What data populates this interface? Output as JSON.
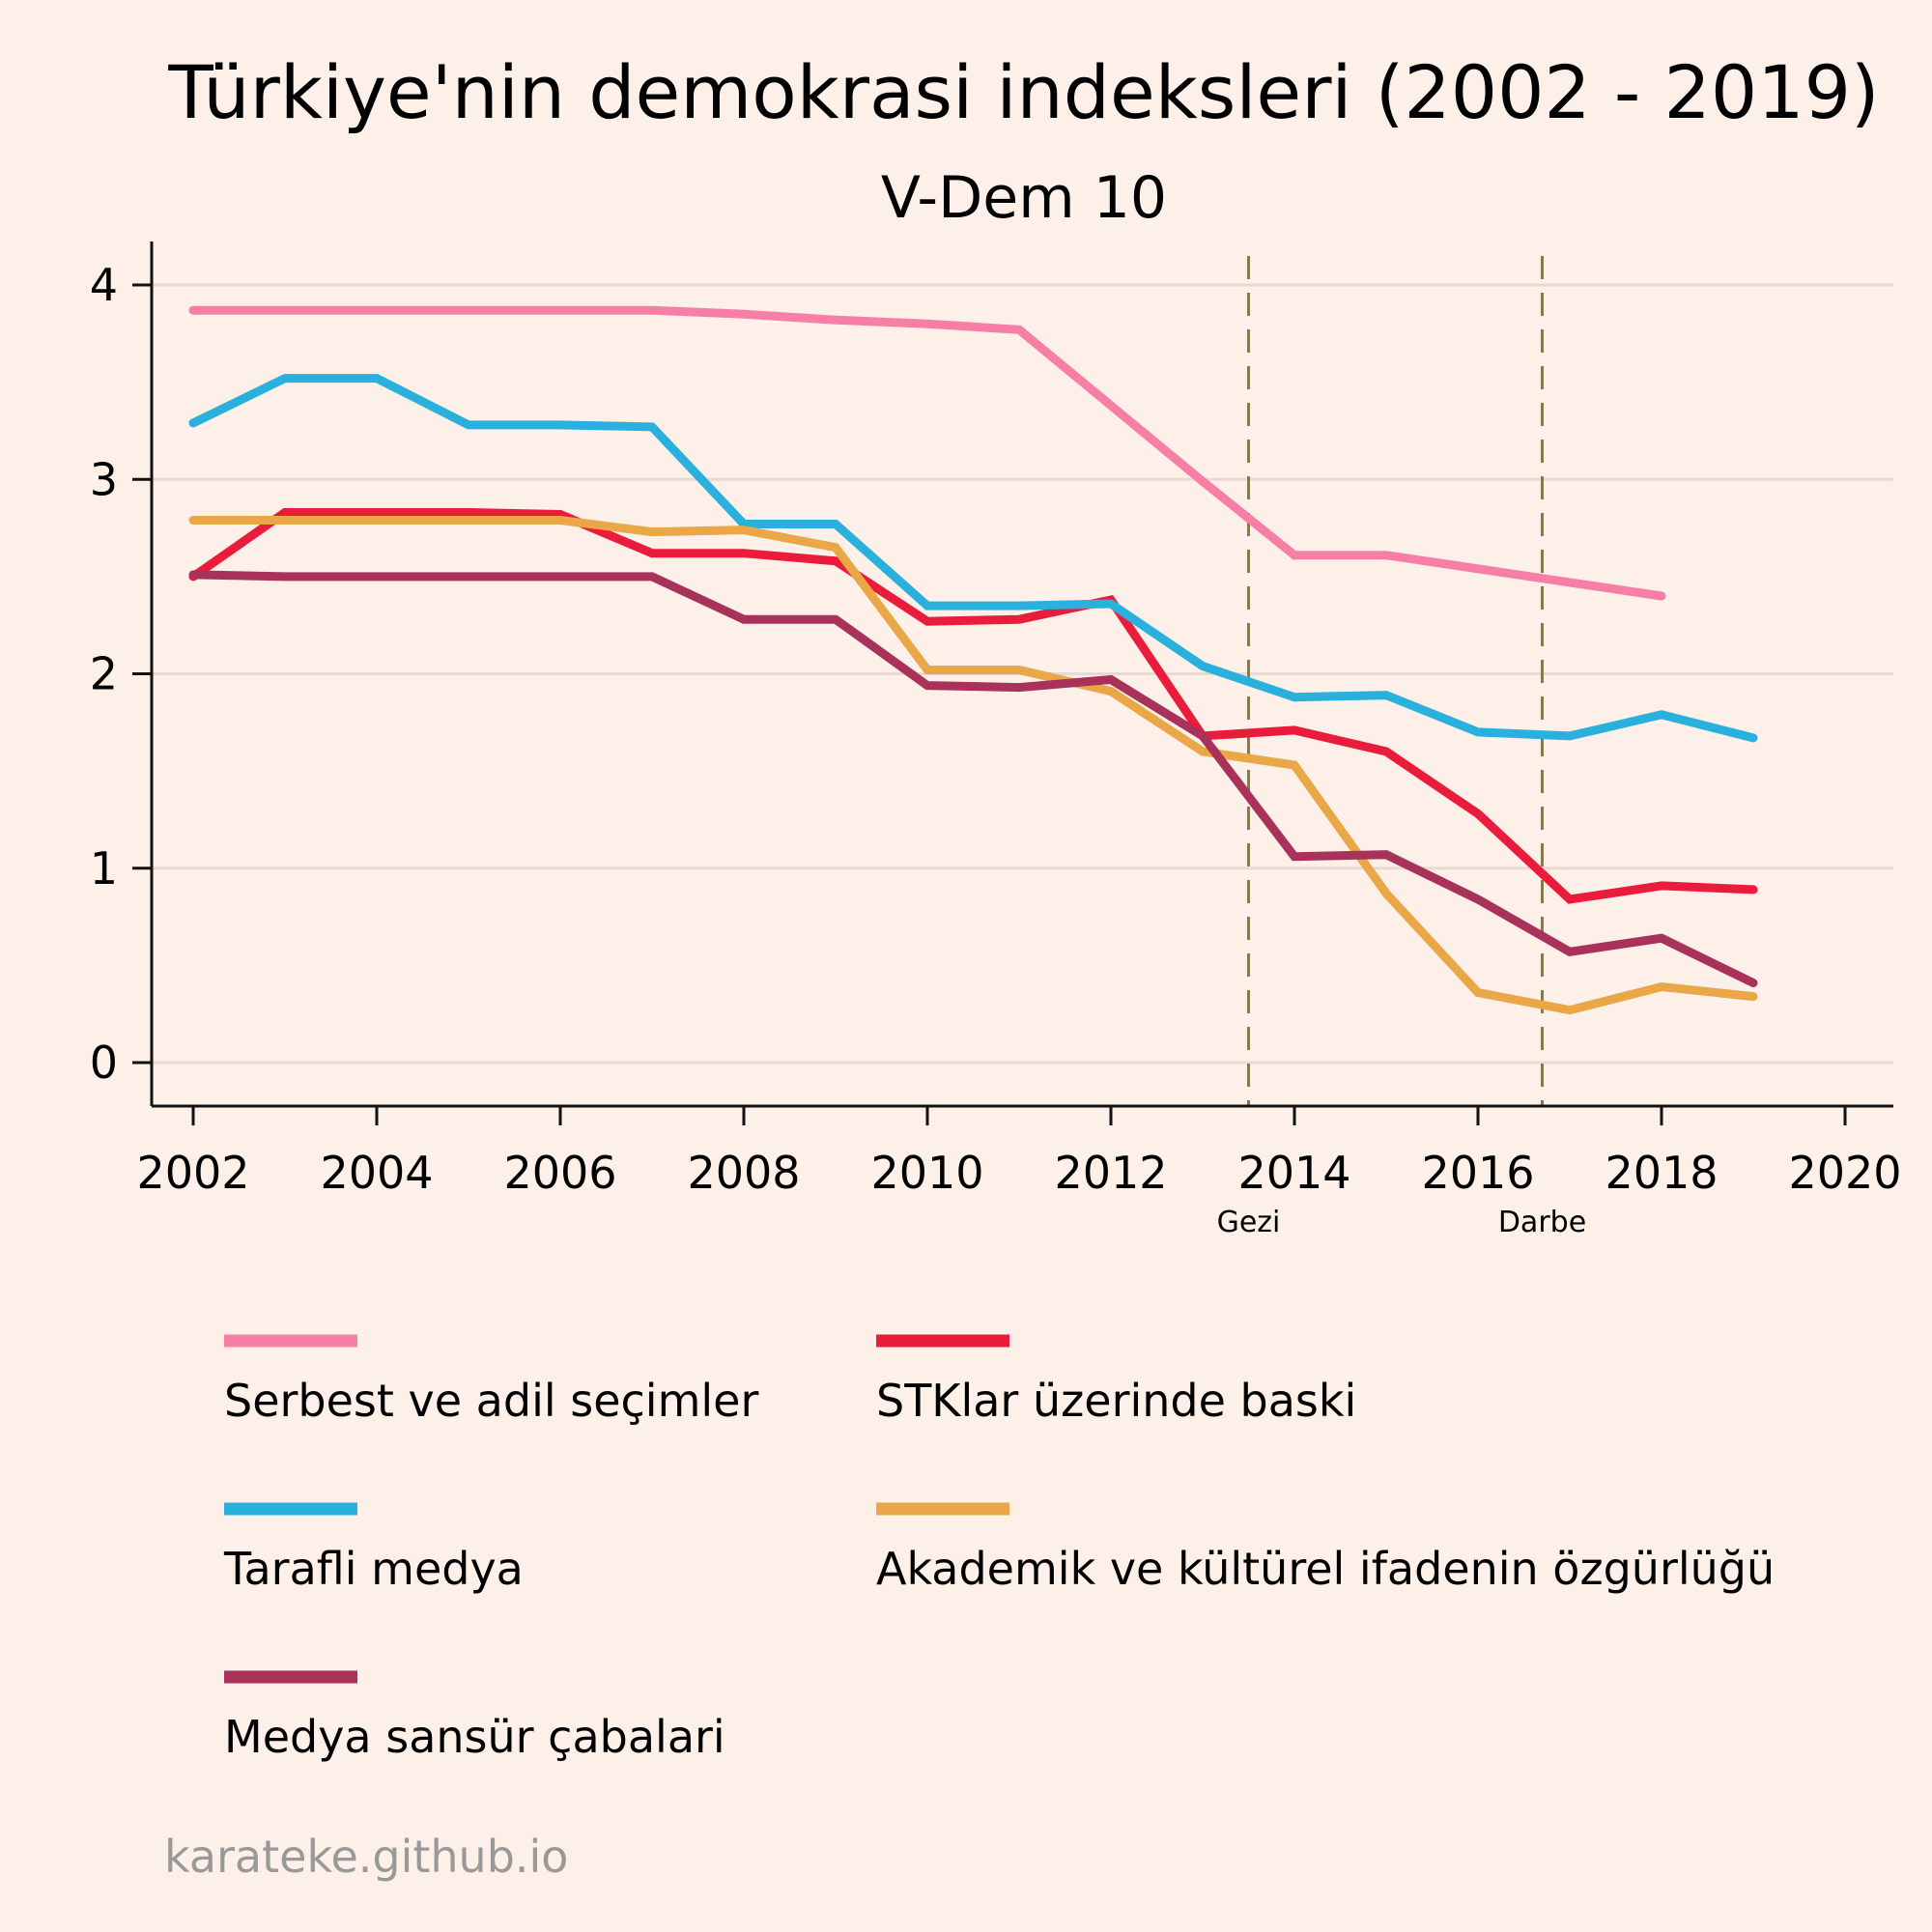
{
  "chart_data": {
    "type": "line",
    "title": "Türkiye'nin demokrasi indeksleri (2002 - 2019)",
    "subtitle": "V-Dem 10",
    "xlabel": "",
    "ylabel": "",
    "xlim": [
      2002,
      2020
    ],
    "ylim": [
      0,
      4
    ],
    "x_ticks": [
      2002,
      2004,
      2006,
      2008,
      2010,
      2012,
      2014,
      2016,
      2018,
      2020
    ],
    "y_ticks": [
      0,
      1,
      2,
      3,
      4
    ],
    "grid": "horizontal",
    "legend_position": "bottom",
    "x": [
      2002,
      2003,
      2004,
      2005,
      2006,
      2007,
      2008,
      2009,
      2010,
      2011,
      2012,
      2013,
      2014,
      2015,
      2016,
      2017,
      2018,
      2019
    ],
    "series": [
      {
        "name": "Serbest ve adil seçimler",
        "color": "#f77fa6",
        "values": [
          3.87,
          3.87,
          3.87,
          3.87,
          3.87,
          3.87,
          3.85,
          3.82,
          3.8,
          3.77,
          3.38,
          2.99,
          2.61,
          2.61,
          2.54,
          2.47,
          2.4,
          null
        ]
      },
      {
        "name": "STKlar üzerinde baski",
        "color": "#ea1c3b",
        "values": [
          2.5,
          2.83,
          2.83,
          2.83,
          2.82,
          2.62,
          2.62,
          2.58,
          2.27,
          2.28,
          2.38,
          1.68,
          1.71,
          1.6,
          1.28,
          0.84,
          0.91,
          0.89
        ]
      },
      {
        "name": "Tarafli medya",
        "color": "#2ab0dc",
        "values": [
          3.29,
          3.52,
          3.52,
          3.28,
          3.28,
          3.27,
          2.77,
          2.77,
          2.35,
          2.35,
          2.36,
          2.04,
          1.88,
          1.89,
          1.7,
          1.68,
          1.79,
          1.67
        ]
      },
      {
        "name": "Akademik ve kültürel ifadenin özgürlüğü",
        "color": "#e9a748",
        "values": [
          2.79,
          2.79,
          2.79,
          2.79,
          2.79,
          2.73,
          2.74,
          2.65,
          2.02,
          2.02,
          1.91,
          1.6,
          1.53,
          0.87,
          0.36,
          0.27,
          0.39,
          0.34
        ]
      },
      {
        "name": "Medya sansür çabalari",
        "color": "#a8325a",
        "values": [
          2.51,
          2.5,
          2.5,
          2.5,
          2.5,
          2.5,
          2.28,
          2.28,
          1.94,
          1.93,
          1.97,
          1.68,
          1.06,
          1.07,
          0.84,
          0.57,
          0.64,
          0.41
        ]
      }
    ],
    "annotations": [
      {
        "x": 2013.5,
        "label": "Gezi",
        "color": "#8b7a3c"
      },
      {
        "x": 2016.7,
        "label": "Darbe",
        "color": "#8b7a3c"
      }
    ]
  },
  "source": "karateke.github.io"
}
